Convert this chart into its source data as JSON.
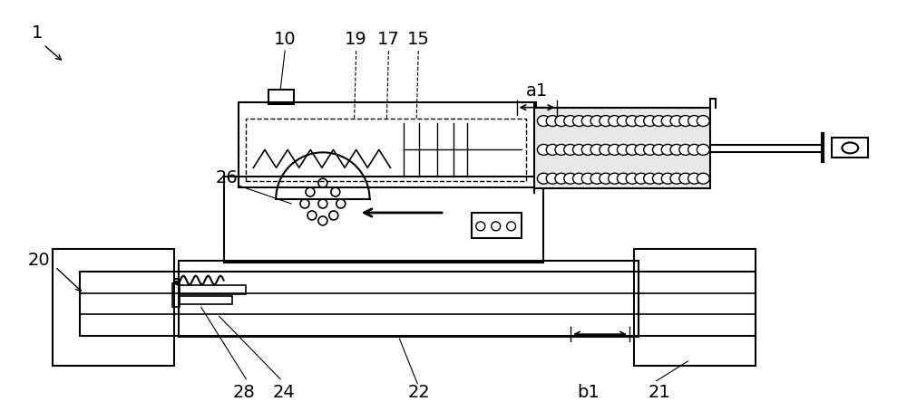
{
  "bg_color": "#ffffff",
  "line_color": "#000000",
  "fig_width": 10.0,
  "fig_height": 4.54,
  "dpi": 100
}
